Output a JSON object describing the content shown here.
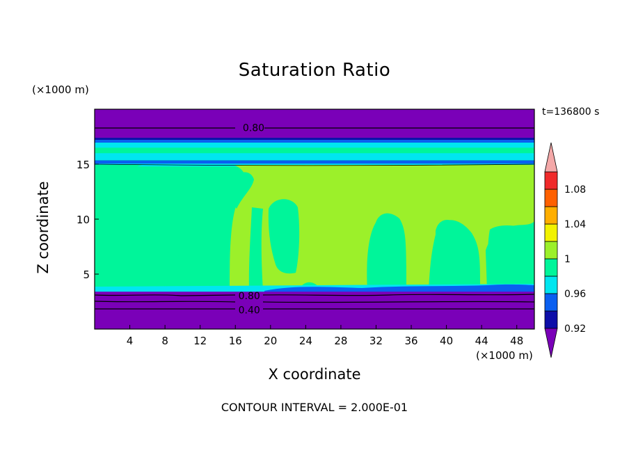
{
  "chart_data": {
    "type": "heatmap",
    "title": "Saturation Ratio",
    "xlabel": "X coordinate",
    "ylabel": "Z coordinate",
    "x_unit": "(×1000 m)",
    "y_unit": "(×1000 m)",
    "time_label": "t=136800 s",
    "footer": "CONTOUR INTERVAL = 2.000E-01",
    "xlim": [
      0,
      50
    ],
    "ylim": [
      0,
      20
    ],
    "x_ticks": [
      4,
      8,
      12,
      16,
      20,
      24,
      28,
      32,
      36,
      40,
      44,
      48
    ],
    "y_ticks": [
      5,
      10,
      15
    ],
    "colorbar": {
      "boundaries": [
        0.92,
        0.94,
        0.96,
        0.98,
        1,
        1.02,
        1.04,
        1.06,
        1.08,
        1.1
      ],
      "labels": [
        "0.92",
        "0.96",
        "1",
        "1.04",
        "1.08"
      ],
      "label_values": [
        0.92,
        0.96,
        1,
        1.04,
        1.08
      ],
      "colors": {
        "under": "#7a00b8",
        "b0_92": "#0d0ea8",
        "b0_94": "#0a5ff0",
        "b0_96": "#00e6f0",
        "b0_98": "#00f59a",
        "b1_00": "#9cf02a",
        "b1_02": "#f2f200",
        "b1_04": "#ffae00",
        "b1_06": "#ff6000",
        "b1_08": "#f02a2a",
        "over": "#f4a8a8"
      }
    },
    "contour_labels": [
      {
        "text": "0.80",
        "x": 18,
        "y": 18.4
      },
      {
        "text": "0.80",
        "x": 17.5,
        "y": 3.1
      },
      {
        "text": "0.40",
        "x": 17.5,
        "y": 1.8
      }
    ],
    "layers": [
      {
        "z_from": 0,
        "z_to": 3.4,
        "value_class": "under"
      },
      {
        "z_from": 3.4,
        "z_to": 14.8,
        "value_class": "b0_98/b1_00"
      },
      {
        "z_from": 14.8,
        "z_to": 17.4,
        "value_class": "b0_96/b0_94"
      },
      {
        "z_from": 17.4,
        "z_to": 20,
        "value_class": "under"
      }
    ]
  }
}
